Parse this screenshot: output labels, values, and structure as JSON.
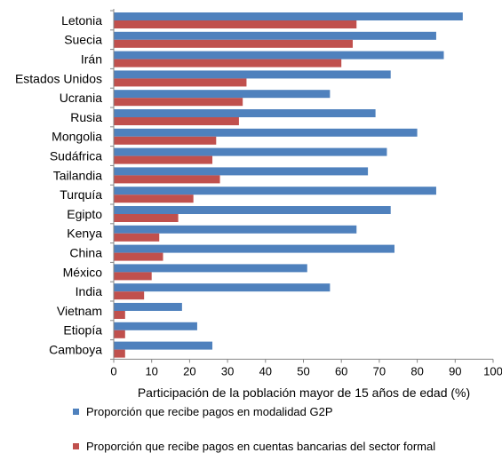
{
  "chart_data": {
    "type": "bar",
    "orientation": "horizontal",
    "categories": [
      "Letonia",
      "Suecia",
      "Irán",
      "Estados Unidos",
      "Ucrania",
      "Rusia",
      "Mongolia",
      "Sudáfrica",
      "Tailandia",
      "Turquía",
      "Egipto",
      "Kenya",
      "China",
      "México",
      "India",
      "Vietnam",
      "Etiopía",
      "Camboya"
    ],
    "series": [
      {
        "name": "Proporción que recibe pagos en modalidad G2P",
        "color": "#4F81BD",
        "values": [
          92,
          85,
          87,
          73,
          57,
          69,
          80,
          72,
          67,
          85,
          73,
          64,
          74,
          51,
          57,
          18,
          22,
          26
        ]
      },
      {
        "name": "Proporción que recibe pagos en cuentas bancarias del sector formal",
        "color": "#C0504D",
        "values": [
          64,
          63,
          60,
          35,
          34,
          33,
          27,
          26,
          28,
          21,
          17,
          12,
          13,
          10,
          8,
          3,
          3,
          3
        ]
      }
    ],
    "xlabel": "Participación de la población mayor de 15 años de edad (%)",
    "xlim": [
      0,
      100
    ],
    "xticks": [
      "0",
      "10",
      "20",
      "30",
      "40",
      "50",
      "60",
      "70",
      "80",
      "90",
      "100"
    ],
    "grid": false,
    "legend_position": "bottom"
  }
}
